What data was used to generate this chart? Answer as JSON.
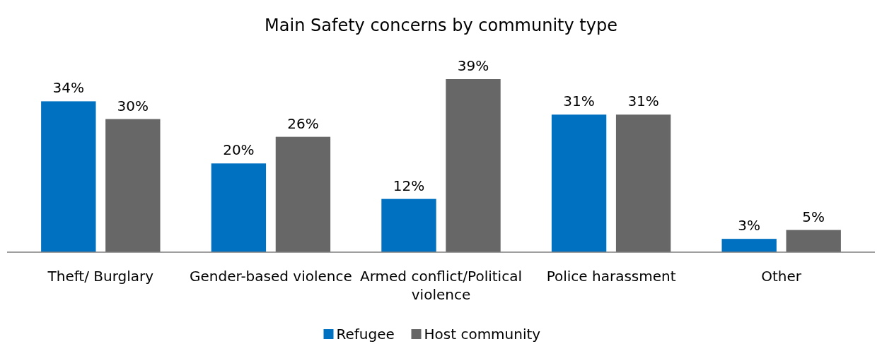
{
  "chart_data": {
    "type": "bar",
    "title": "Main Safety concerns by community type",
    "categories": [
      "Theft/ Burglary",
      "Gender-based violence",
      "Armed conflict/Political violence",
      "Police harassment",
      "Other"
    ],
    "series": [
      {
        "name": "Refugee",
        "color": "#0070c0",
        "values": [
          34,
          20,
          12,
          31,
          3
        ],
        "value_labels": [
          "34%",
          "20%",
          "12%",
          "31%",
          "3%"
        ]
      },
      {
        "name": "Host community",
        "color": "#676767",
        "values": [
          30,
          26,
          39,
          31,
          5
        ],
        "value_labels": [
          "30%",
          "26%",
          "39%",
          "31%",
          "5%"
        ]
      }
    ],
    "legend": "bottom"
  }
}
